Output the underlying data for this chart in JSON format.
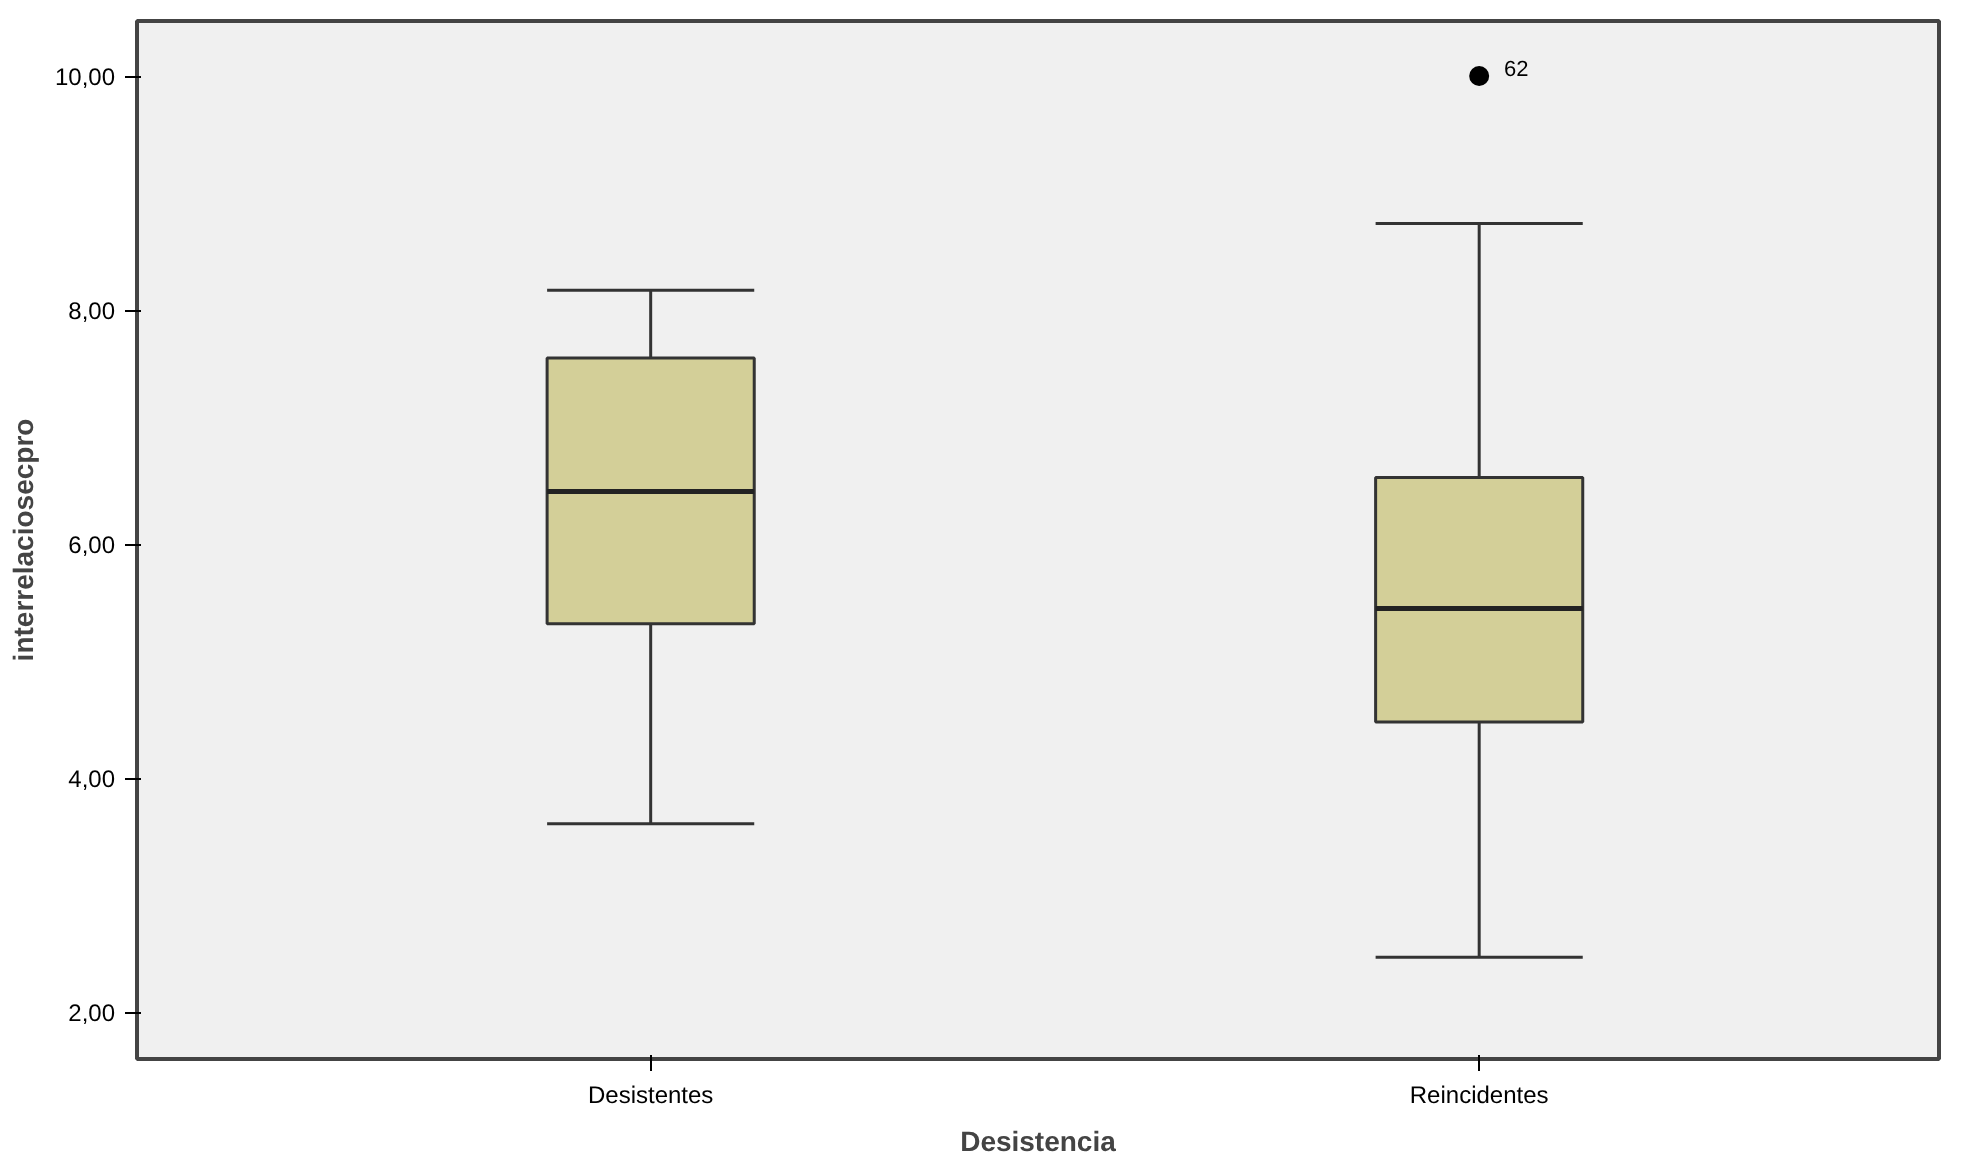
{
  "chart_data": {
    "type": "box",
    "xlabel": "Desistencia",
    "ylabel": "interrelaciosecpro",
    "categories": [
      "Desistentes",
      "Reincidentes"
    ],
    "boxes": [
      {
        "low": 3.61,
        "q1": 5.32,
        "median": 6.45,
        "q3": 7.59,
        "high": 8.17
      },
      {
        "low": 2.47,
        "q1": 4.48,
        "median": 5.45,
        "q3": 6.57,
        "high": 8.74,
        "outliers": [
          10.0
        ]
      }
    ],
    "color": "#d3cf98",
    "ylim": [
      1.6,
      10.47
    ],
    "yticks": [
      {
        "value": 2,
        "label": "2,00"
      },
      {
        "value": 4,
        "label": "4,00"
      },
      {
        "value": 6,
        "label": "6,00"
      },
      {
        "value": 8,
        "label": "8,00"
      },
      {
        "value": 10,
        "label": "10,00"
      }
    ],
    "annotations": [
      "62"
    ],
    "grid": false
  }
}
